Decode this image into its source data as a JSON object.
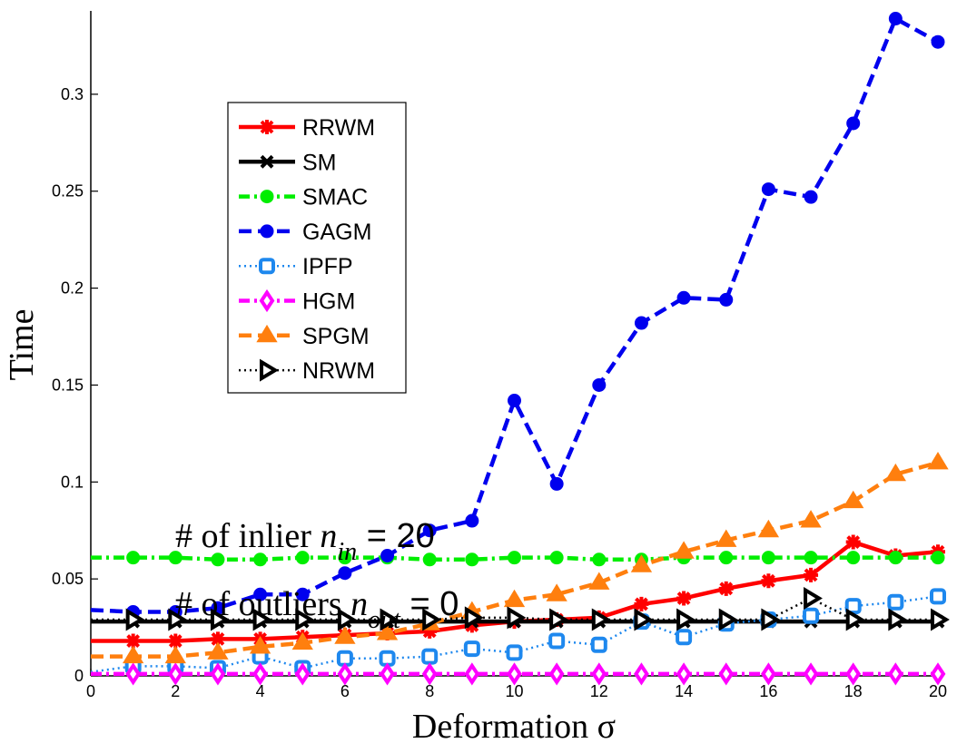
{
  "chart_data": {
    "type": "line",
    "xlabel": "Deformation σ",
    "ylabel": "Time",
    "xlim": [
      0,
      20
    ],
    "ylim": [
      0,
      0.343
    ],
    "xticks": [
      0,
      2,
      4,
      6,
      8,
      10,
      12,
      14,
      16,
      18,
      20
    ],
    "yticks": [
      0,
      0.05,
      0.1,
      0.15,
      0.2,
      0.25,
      0.3
    ],
    "ytick_labels": [
      "0",
      "0.05",
      "0.1",
      "0.15",
      "0.2",
      "0.25",
      "0.3"
    ],
    "grid": false,
    "legend_position": "upper-left",
    "annotations": [
      {
        "prefix": "# of inlier ",
        "var": "n",
        "sub": "in",
        "suffix": " = 20"
      },
      {
        "prefix": "# of outliers ",
        "var": "n",
        "sub": "out",
        "suffix": " = 0"
      }
    ],
    "x": [
      0,
      1,
      2,
      3,
      4,
      5,
      6,
      7,
      8,
      9,
      10,
      11,
      12,
      13,
      14,
      15,
      16,
      17,
      18,
      19,
      20
    ],
    "series": [
      {
        "name": "RRWM",
        "color": "#ff0000",
        "dash": "solid",
        "marker": "star",
        "values": [
          0.018,
          0.018,
          0.018,
          0.019,
          0.019,
          0.02,
          0.021,
          0.022,
          0.023,
          0.026,
          0.028,
          0.029,
          0.03,
          0.037,
          0.04,
          0.045,
          0.049,
          0.052,
          0.069,
          0.062,
          0.064
        ]
      },
      {
        "name": "SM",
        "color": "#000000",
        "dash": "solid",
        "marker": "x",
        "values": [
          0.028,
          0.028,
          0.028,
          0.028,
          0.028,
          0.028,
          0.028,
          0.028,
          0.028,
          0.028,
          0.028,
          0.028,
          0.028,
          0.028,
          0.028,
          0.028,
          0.028,
          0.028,
          0.028,
          0.028,
          0.028
        ]
      },
      {
        "name": "SMAC",
        "color": "#00ee00",
        "dash": "dashdot",
        "marker": "circle",
        "values": [
          0.061,
          0.061,
          0.061,
          0.06,
          0.06,
          0.061,
          0.061,
          0.061,
          0.06,
          0.06,
          0.061,
          0.061,
          0.06,
          0.06,
          0.061,
          0.061,
          0.061,
          0.061,
          0.061,
          0.061,
          0.061
        ]
      },
      {
        "name": "GAGM",
        "color": "#0000ee",
        "dash": "dashed",
        "marker": "circle",
        "values": [
          0.034,
          0.033,
          0.033,
          0.035,
          0.042,
          0.042,
          0.053,
          0.062,
          0.075,
          0.08,
          0.142,
          0.099,
          0.15,
          0.182,
          0.195,
          0.194,
          0.251,
          0.247,
          0.285,
          0.339,
          0.327
        ]
      },
      {
        "name": "IPFP",
        "color": "#1e88ee",
        "dash": "dotted",
        "marker": "square",
        "values": [
          0.002,
          0.005,
          0.005,
          0.004,
          0.01,
          0.004,
          0.009,
          0.009,
          0.01,
          0.014,
          0.012,
          0.018,
          0.016,
          0.028,
          0.02,
          0.027,
          0.029,
          0.031,
          0.036,
          0.038,
          0.041
        ]
      },
      {
        "name": "HGM",
        "color": "#ff00ff",
        "dash": "dashdot",
        "marker": "diamond",
        "values": [
          0.001,
          0.001,
          0.001,
          0.001,
          0.001,
          0.001,
          0.001,
          0.001,
          0.001,
          0.001,
          0.001,
          0.001,
          0.001,
          0.001,
          0.001,
          0.001,
          0.001,
          0.001,
          0.001,
          0.001,
          0.001
        ]
      },
      {
        "name": "SPGM",
        "color": "#ff7f0e",
        "dash": "dashed",
        "marker": "triangle",
        "values": [
          0.01,
          0.01,
          0.01,
          0.012,
          0.015,
          0.017,
          0.02,
          0.022,
          0.027,
          0.033,
          0.039,
          0.042,
          0.048,
          0.057,
          0.064,
          0.07,
          0.075,
          0.08,
          0.09,
          0.104,
          0.11
        ]
      },
      {
        "name": "NRWM",
        "color": "#000000",
        "dash": "dotted",
        "marker": "triangle-right",
        "values": [
          0.029,
          0.029,
          0.029,
          0.029,
          0.029,
          0.029,
          0.029,
          0.029,
          0.029,
          0.03,
          0.03,
          0.029,
          0.029,
          0.029,
          0.029,
          0.029,
          0.029,
          0.04,
          0.029,
          0.029,
          0.029
        ]
      }
    ]
  }
}
